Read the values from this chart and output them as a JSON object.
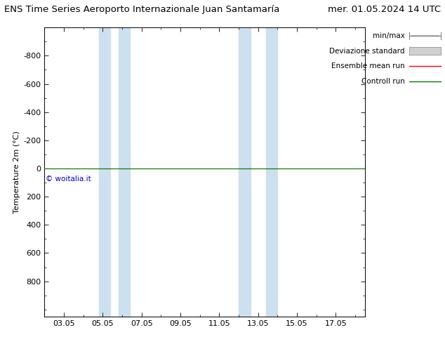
{
  "title_left": "ENS Time Series Aeroporto Internazionale Juan Santamaría",
  "title_right": "mer. 01.05.2024 14 UTC",
  "ylabel": "Temperature 2m (°C)",
  "ylim_bottom": 1050,
  "ylim_top": -1000,
  "yticks": [
    -800,
    -600,
    -400,
    -200,
    0,
    200,
    400,
    600,
    800
  ],
  "xtick_labels": [
    "03.05",
    "05.05",
    "07.05",
    "09.05",
    "11.05",
    "13.05",
    "15.05",
    "17.05"
  ],
  "xtick_positions": [
    2,
    4,
    6,
    8,
    10,
    12,
    14,
    16
  ],
  "xlim": [
    1,
    17.5
  ],
  "blue_bands": [
    [
      3.8,
      4.4
    ],
    [
      4.8,
      5.4
    ],
    [
      11.0,
      11.6
    ],
    [
      12.4,
      13.0
    ]
  ],
  "blue_band_color": "#cde0f0",
  "ensemble_mean_color": "#ff0000",
  "control_run_color": "#008000",
  "line_y": 0,
  "std_band_color": "#c8c8c8",
  "watermark": "© woitalia.it",
  "watermark_color": "#0000cc",
  "background_color": "#ffffff",
  "title_fontsize": 9.5,
  "axis_fontsize": 8,
  "legend_fontsize": 7.5
}
